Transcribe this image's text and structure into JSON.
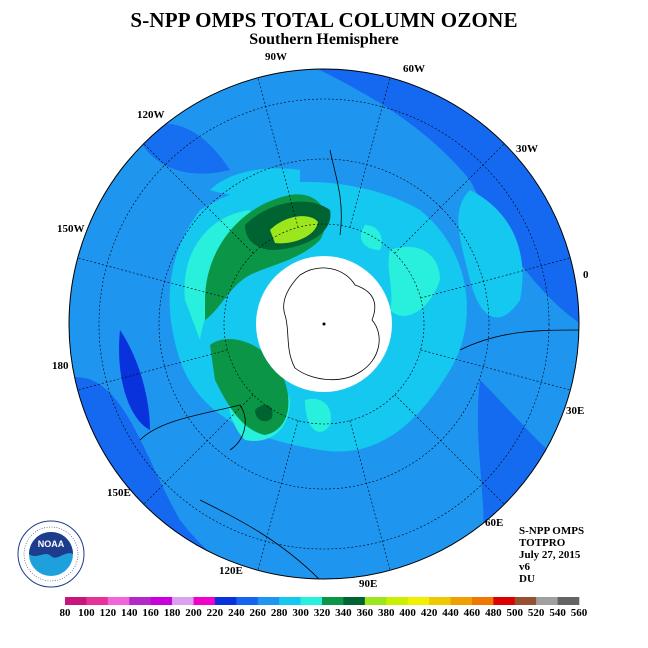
{
  "title": "S-NPP OMPS TOTAL COLUMN OZONE",
  "subtitle": "Southern Hemisphere",
  "longitude_labels": [
    "90W",
    "60W",
    "120W",
    "30W",
    "150W",
    "0",
    "180",
    "30E",
    "150E",
    "60E",
    "120E",
    "90E"
  ],
  "info_lines": [
    "S-NPP OMPS",
    "TOTPRO",
    "July 27, 2015",
    "v6",
    "DU"
  ],
  "logo_text": "NOAA",
  "colorbar": {
    "unit": "DU",
    "labels": [
      "80",
      "100",
      "120",
      "140",
      "160",
      "180",
      "200",
      "220",
      "240",
      "260",
      "280",
      "300",
      "320",
      "340",
      "360",
      "380",
      "400",
      "420",
      "440",
      "460",
      "480",
      "500",
      "520",
      "540",
      "560"
    ],
    "colors": [
      "#c8147d",
      "#e63296",
      "#f064dc",
      "#b428c8",
      "#c800dc",
      "#dca0f0",
      "#f000c8",
      "#0a32dc",
      "#1464f0",
      "#1e96f0",
      "#14c8f0",
      "#28f0dc",
      "#0a9646",
      "#006432",
      "#9ce61e",
      "#c8f000",
      "#f0f000",
      "#f0c800",
      "#f0a000",
      "#f07800",
      "#dc0000",
      "#965032",
      "#a0a0a0",
      "#646464"
    ]
  }
}
